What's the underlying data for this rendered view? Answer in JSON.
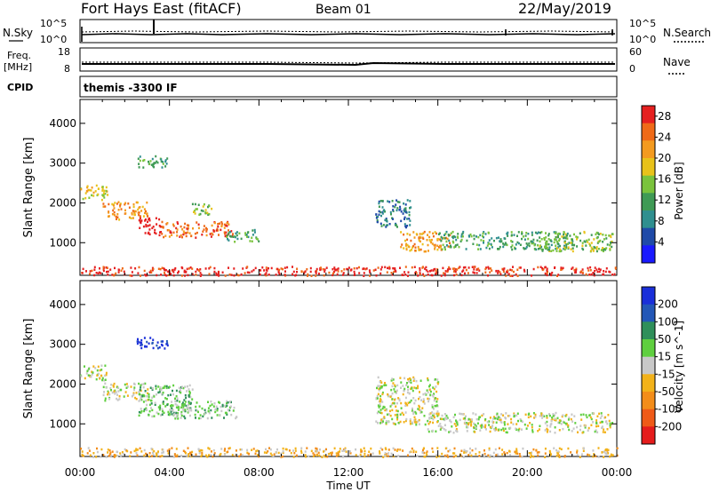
{
  "header": {
    "station": "Fort Hays East (fitACF)",
    "beam": "Beam 01",
    "date": "22/May/2019"
  },
  "panel_nsky": {
    "left_label": "N.Sky",
    "right_label": "N.Search",
    "left_ticks": [
      "10^5",
      "10^0"
    ],
    "right_ticks": [
      "10^5",
      "10^0"
    ]
  },
  "panel_freq": {
    "left_label_1": "Freq.",
    "left_label_2": "[MHz]",
    "right_label": "Nave",
    "left_ticks": [
      "18",
      "8"
    ],
    "right_ticks": [
      "60",
      "0"
    ]
  },
  "panel_cpid": {
    "left_label": "CPID",
    "text": "themis -3300 IF"
  },
  "colors": {
    "power_scale": [
      "#1a1aff",
      "#1f4aa8",
      "#2f8f8f",
      "#3f9a55",
      "#7ac33c",
      "#e8c21a",
      "#f39a1f",
      "#ef6a18",
      "#e52020"
    ],
    "velocity_scale": [
      "#1a2fd9",
      "#2357b7",
      "#2f8f5a",
      "#5fcf3f",
      "#c8c8c8",
      "#f2b21a",
      "#f38d1a",
      "#ef5a18",
      "#e51c1c"
    ]
  },
  "chart_data": [
    {
      "type": "heatmap",
      "title": "",
      "xlabel": "Time UT",
      "ylabel": "Slant Range [km]",
      "x_ticks": [
        "00:00",
        "04:00",
        "08:00",
        "12:00",
        "16:00",
        "20:00",
        "00:00"
      ],
      "x_range_hours": [
        0,
        24
      ],
      "y_ticks": [
        "1000",
        "2000",
        "3000",
        "4000"
      ],
      "ylim": [
        180,
        4600
      ],
      "colorbar": {
        "label": "Power [dB]",
        "ticks": [
          "4",
          "8",
          "12",
          "16",
          "20",
          "24",
          "28"
        ],
        "range": [
          0,
          30
        ]
      },
      "regions": [
        {
          "t0": 0.0,
          "t1": 1.2,
          "r0": 2100,
          "r1": 2500,
          "level": 5
        },
        {
          "t0": 1.0,
          "t1": 3.0,
          "r0": 1600,
          "r1": 2050,
          "level": 6
        },
        {
          "t0": 2.6,
          "t1": 3.6,
          "r0": 1200,
          "r1": 1650,
          "level": 9
        },
        {
          "t0": 3.6,
          "t1": 6.8,
          "r0": 1150,
          "r1": 1550,
          "level": 7
        },
        {
          "t0": 5.0,
          "t1": 6.0,
          "r0": 1700,
          "r1": 2000,
          "level": 4
        },
        {
          "t0": 6.5,
          "t1": 8.0,
          "r0": 1050,
          "r1": 1350,
          "level": 3
        },
        {
          "t0": 2.5,
          "t1": 3.9,
          "r0": 2900,
          "r1": 3200,
          "level": 3
        },
        {
          "t0": 13.2,
          "t1": 14.8,
          "r0": 1400,
          "r1": 2100,
          "level": 2
        },
        {
          "t0": 14.3,
          "t1": 16.5,
          "r0": 800,
          "r1": 1300,
          "level": 6
        },
        {
          "t0": 16.0,
          "t1": 22.0,
          "r0": 850,
          "r1": 1300,
          "level": 3
        },
        {
          "t0": 20.5,
          "t1": 23.8,
          "r0": 800,
          "r1": 1300,
          "level": 4
        },
        {
          "t0": 0.0,
          "t1": 24.0,
          "r0": 190,
          "r1": 420,
          "level": 8
        }
      ]
    },
    {
      "type": "heatmap",
      "title": "",
      "xlabel": "Time UT",
      "ylabel": "Slant Range [km]",
      "x_ticks": [
        "00:00",
        "04:00",
        "08:00",
        "12:00",
        "16:00",
        "20:00",
        "00:00"
      ],
      "x_range_hours": [
        0,
        24
      ],
      "y_ticks": [
        "1000",
        "2000",
        "3000",
        "4000"
      ],
      "ylim": [
        180,
        4600
      ],
      "colorbar": {
        "label": "Velocity [m s^-1]",
        "ticks": [
          "200",
          "100",
          "50",
          "15",
          "-15",
          "-50",
          "-100",
          "-200"
        ],
        "range": [
          -250,
          250
        ]
      },
      "regions": [
        {
          "t0": 0.0,
          "t1": 1.2,
          "r0": 2100,
          "r1": 2500,
          "level": 4
        },
        {
          "t0": 1.0,
          "t1": 3.0,
          "r0": 1600,
          "r1": 2050,
          "level": 4
        },
        {
          "t0": 2.6,
          "t1": 5.0,
          "r0": 1200,
          "r1": 2000,
          "level": 3
        },
        {
          "t0": 4.0,
          "t1": 7.0,
          "r0": 1150,
          "r1": 1600,
          "level": 3
        },
        {
          "t0": 2.5,
          "t1": 3.9,
          "r0": 2900,
          "r1": 3200,
          "level": 0
        },
        {
          "t0": 13.2,
          "t1": 16.0,
          "r0": 1000,
          "r1": 2200,
          "level": 4
        },
        {
          "t0": 15.5,
          "t1": 23.8,
          "r0": 800,
          "r1": 1300,
          "level": 4
        },
        {
          "t0": 0.0,
          "t1": 24.0,
          "r0": 190,
          "r1": 420,
          "level": 5
        }
      ]
    }
  ]
}
